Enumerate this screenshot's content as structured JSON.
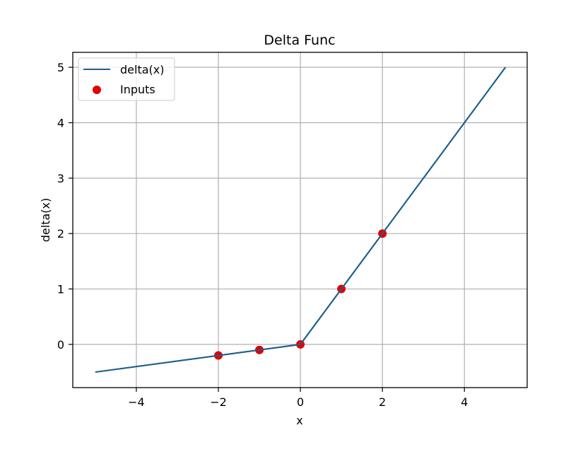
{
  "chart_data": {
    "type": "line",
    "title": "Delta Func",
    "xlabel": "x",
    "ylabel": "delta(x)",
    "xlim": [
      -5.55,
      5.53
    ],
    "ylim": [
      -0.78,
      5.27
    ],
    "grid": true,
    "legend_position": "upper left",
    "x_ticks": [
      -4,
      -2,
      0,
      2,
      4
    ],
    "x_tick_labels": [
      "−4",
      "−2",
      "0",
      "2",
      "4"
    ],
    "y_ticks": [
      0,
      1,
      2,
      3,
      4,
      5
    ],
    "y_tick_labels": [
      "0",
      "1",
      "2",
      "3",
      "4",
      "5"
    ],
    "series": [
      {
        "name": "delta(x)",
        "kind": "line",
        "color": "#1f5f8b",
        "x": [
          -5,
          0,
          5
        ],
        "y": [
          -0.5,
          0,
          5
        ]
      },
      {
        "name": "Inputs",
        "kind": "scatter",
        "color": "#e00000",
        "x": [
          -2,
          -1,
          0,
          1,
          2
        ],
        "y": [
          -0.2,
          -0.1,
          0,
          1,
          2
        ]
      }
    ]
  },
  "legend": {
    "items": [
      {
        "label": "delta(x)"
      },
      {
        "label": "Inputs"
      }
    ]
  }
}
